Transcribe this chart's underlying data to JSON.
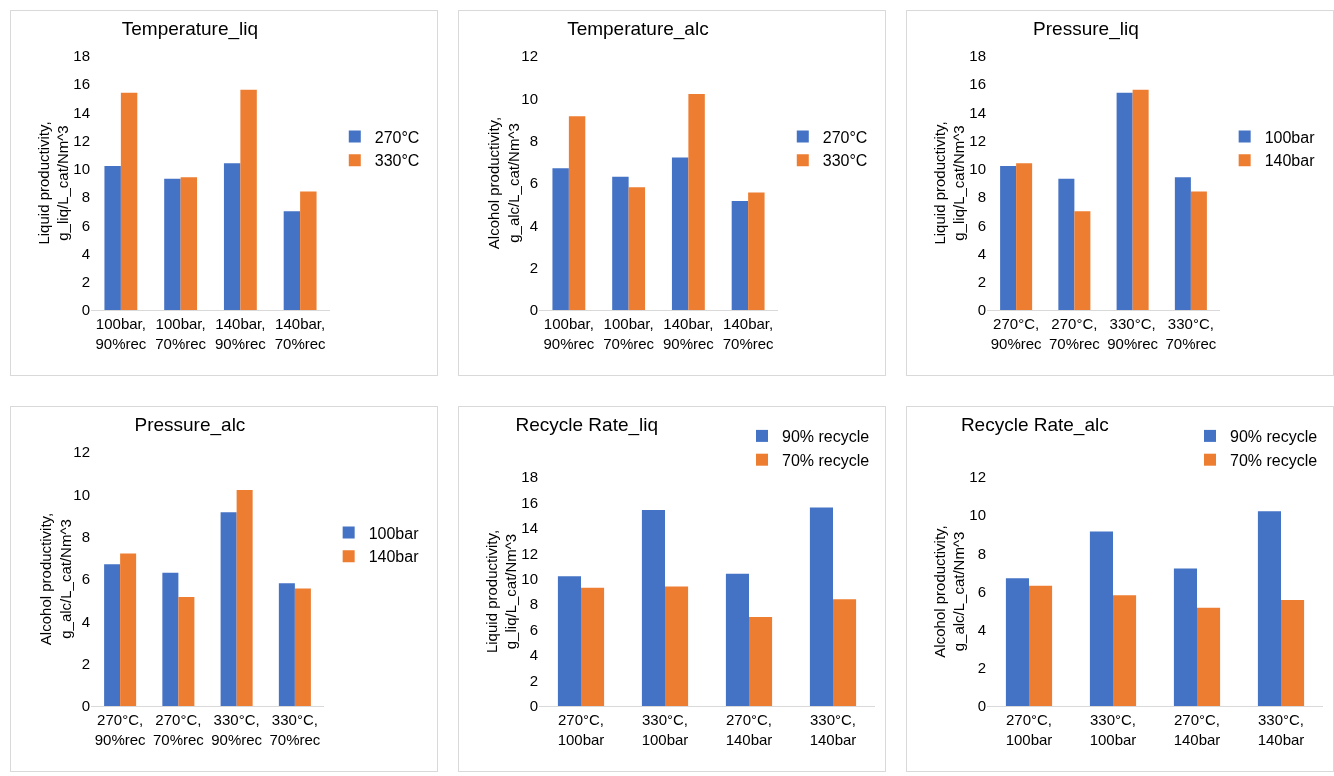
{
  "chart_data": [
    {
      "type": "bar",
      "title": "Temperature_liq",
      "ylabel": "Liquid productivity, g_liq/L_cat/Nm^3",
      "categories": [
        "100bar, 90%rec",
        "100bar, 70%rec",
        "140bar, 90%rec",
        "140bar, 70%rec"
      ],
      "series": [
        {
          "name": "270°C",
          "color": "#4472c4",
          "values": [
            10.2,
            9.3,
            10.4,
            7.0
          ]
        },
        {
          "name": "330°C",
          "color": "#ed7d31",
          "values": [
            15.4,
            9.4,
            15.6,
            8.4
          ]
        }
      ],
      "ylim": [
        0,
        18
      ],
      "yticks": [
        0,
        2,
        4,
        6,
        8,
        10,
        12,
        14,
        16,
        18
      ],
      "grid": false,
      "legend": "right"
    },
    {
      "type": "bar",
      "title": "Temperature_alc",
      "ylabel": "Alcohol productivity, g_alc/L_cat/Nm^3",
      "categories": [
        "100bar, 90%rec",
        "100bar, 70%rec",
        "140bar, 90%rec",
        "140bar, 70%rec"
      ],
      "series": [
        {
          "name": "270°C",
          "color": "#4472c4",
          "values": [
            6.7,
            6.3,
            7.2,
            5.15
          ]
        },
        {
          "name": "330°C",
          "color": "#ed7d31",
          "values": [
            9.15,
            5.8,
            10.2,
            5.55
          ]
        }
      ],
      "ylim": [
        0,
        12
      ],
      "yticks": [
        0,
        2,
        4,
        6,
        8,
        10,
        12
      ],
      "grid": false,
      "legend": "right"
    },
    {
      "type": "bar",
      "title": "Pressure_liq",
      "ylabel": "Liquid productivity, g_liq/L_cat/Nm^3",
      "categories": [
        "270°C, 90%rec",
        "270°C, 70%rec",
        "330°C, 90%rec",
        "330°C, 70%rec"
      ],
      "series": [
        {
          "name": "100bar",
          "color": "#4472c4",
          "values": [
            10.2,
            9.3,
            15.4,
            9.4
          ]
        },
        {
          "name": "140bar",
          "color": "#ed7d31",
          "values": [
            10.4,
            7.0,
            15.6,
            8.4
          ]
        }
      ],
      "ylim": [
        0,
        18
      ],
      "yticks": [
        0,
        2,
        4,
        6,
        8,
        10,
        12,
        14,
        16,
        18
      ],
      "grid": false,
      "legend": "right"
    },
    {
      "type": "bar",
      "title": "Pressure_alc",
      "ylabel": "Alcohol productivity, g_alc/L_cat/Nm^3",
      "categories": [
        "270°C, 90%rec",
        "270°C, 70%rec",
        "330°C, 90%rec",
        "330°C, 70%rec"
      ],
      "series": [
        {
          "name": "100bar",
          "color": "#4472c4",
          "values": [
            6.7,
            6.3,
            9.15,
            5.8
          ]
        },
        {
          "name": "140bar",
          "color": "#ed7d31",
          "values": [
            7.2,
            5.15,
            10.2,
            5.55
          ]
        }
      ],
      "ylim": [
        0,
        12
      ],
      "yticks": [
        0,
        2,
        4,
        6,
        8,
        10,
        12
      ],
      "grid": false,
      "legend": "right"
    },
    {
      "type": "bar",
      "title": "Recycle Rate_liq",
      "ylabel": "Liquid productivity, g_liq/L_cat/Nm^3",
      "categories": [
        "270°C, 100bar",
        "330°C, 100bar",
        "270°C, 140bar",
        "330°C, 140bar"
      ],
      "series": [
        {
          "name": "90% recycle",
          "color": "#4472c4",
          "values": [
            10.2,
            15.4,
            10.4,
            15.6
          ]
        },
        {
          "name": "70% recycle",
          "color": "#ed7d31",
          "values": [
            9.3,
            9.4,
            7.0,
            8.4
          ]
        }
      ],
      "ylim": [
        0,
        18
      ],
      "yticks": [
        0,
        2,
        4,
        6,
        8,
        10,
        12,
        14,
        16,
        18
      ],
      "grid": false,
      "legend": "top right"
    },
    {
      "type": "bar",
      "title": "Recycle Rate_alc",
      "ylabel": "Alcohol productivity, g_alc/L_cat/Nm^3",
      "categories": [
        "270°C, 100bar",
        "330°C, 100bar",
        "270°C, 140bar",
        "330°C, 140bar"
      ],
      "series": [
        {
          "name": "90% recycle",
          "color": "#4472c4",
          "values": [
            6.7,
            9.15,
            7.2,
            10.2
          ]
        },
        {
          "name": "70% recycle",
          "color": "#ed7d31",
          "values": [
            6.3,
            5.8,
            5.15,
            5.55
          ]
        }
      ],
      "ylim": [
        0,
        12
      ],
      "yticks": [
        0,
        2,
        4,
        6,
        8,
        10,
        12
      ],
      "grid": false,
      "legend": "top right"
    }
  ]
}
